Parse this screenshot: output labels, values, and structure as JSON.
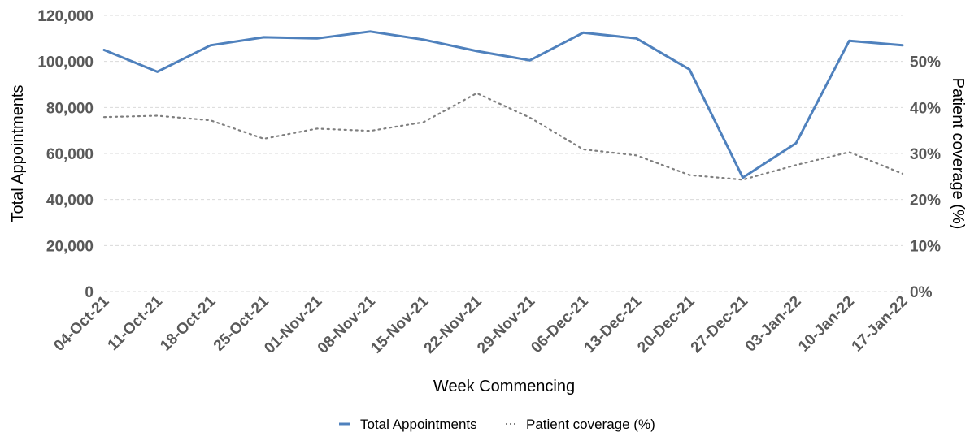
{
  "chart_data": {
    "type": "line",
    "title": "",
    "xlabel": "Week Commencing",
    "ylabel": "Total Appointments",
    "y2label": "Patient coverage (%)",
    "categories": [
      "04-Oct-21",
      "11-Oct-21",
      "18-Oct-21",
      "25-Oct-21",
      "01-Nov-21",
      "08-Nov-21",
      "15-Nov-21",
      "22-Nov-21",
      "29-Nov-21",
      "06-Dec-21",
      "13-Dec-21",
      "20-Dec-21",
      "27-Dec-21",
      "03-Jan-22",
      "10-Jan-22",
      "17-Jan-22"
    ],
    "ylim": [
      0,
      120000
    ],
    "yticks": [
      "0",
      "20,000",
      "40,000",
      "60,000",
      "80,000",
      "100,000",
      "120,000"
    ],
    "y2lim": [
      0,
      60
    ],
    "y2ticks": [
      "0%",
      "10%",
      "20%",
      "30%",
      "40%",
      "50%"
    ],
    "grid": true,
    "legend_position": "bottom",
    "series": [
      {
        "name": "Total Appointments",
        "axis": "left",
        "style": "solid",
        "color": "#4f81bd",
        "values": [
          105000,
          95500,
          107000,
          110500,
          110000,
          113000,
          109500,
          104500,
          100500,
          112500,
          110000,
          96500,
          49500,
          64500,
          109000,
          107000
        ]
      },
      {
        "name": "Patient coverage (%)",
        "axis": "right",
        "style": "dotted",
        "color": "#7f7f7f",
        "values": [
          37.9,
          38.2,
          37.2,
          33.2,
          35.4,
          34.9,
          36.8,
          43.1,
          37.8,
          30.9,
          29.6,
          25.3,
          24.3,
          27.5,
          30.3,
          25.6
        ]
      }
    ]
  }
}
